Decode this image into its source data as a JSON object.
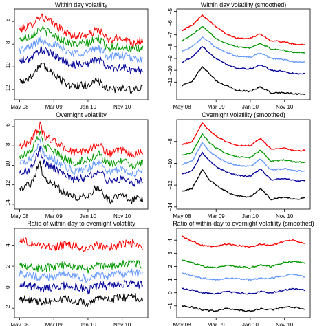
{
  "chart_data": [
    {
      "type": "line",
      "title": "Within day volatility",
      "x_ticks": [
        "May 08",
        "Mar 09",
        "Jan 10",
        "Nov 10"
      ],
      "y_ticks": [
        -6,
        -8,
        -10,
        -12
      ],
      "ylim": [
        -12.9,
        -4.9
      ],
      "grid": false,
      "x": [
        "May 08",
        "Aug 08",
        "Nov 08",
        "Mar 09",
        "Jun 09",
        "Sep 09",
        "Jan 10",
        "Apr 10",
        "Jul 10",
        "Nov 10",
        "Feb 11",
        "May 11"
      ],
      "series": [
        {
          "color": "#ff0000",
          "values": [
            -6.7,
            -6.4,
            -5.5,
            -6.2,
            -6.9,
            -7.3,
            -7.2,
            -6.7,
            -7.7,
            -7.4,
            -7.9,
            -7.6
          ]
        },
        {
          "color": "#009900",
          "values": [
            -7.6,
            -7.3,
            -6.6,
            -7.2,
            -7.7,
            -8.0,
            -7.9,
            -7.5,
            -8.3,
            -8.2,
            -8.5,
            -8.4
          ]
        },
        {
          "color": "#6699ff",
          "values": [
            -8.5,
            -8.3,
            -7.6,
            -8.0,
            -8.5,
            -8.8,
            -8.7,
            -8.3,
            -9.1,
            -9.0,
            -9.3,
            -9.3
          ]
        },
        {
          "color": "#000099",
          "values": [
            -9.5,
            -9.3,
            -8.5,
            -8.9,
            -9.5,
            -9.8,
            -9.7,
            -9.3,
            -10.1,
            -10.0,
            -10.4,
            -10.2
          ]
        },
        {
          "color": "#000000",
          "values": [
            -11.3,
            -11.0,
            -9.8,
            -10.5,
            -11.4,
            -11.7,
            -11.6,
            -11.2,
            -12.1,
            -11.8,
            -12.1,
            -11.9
          ]
        }
      ]
    },
    {
      "type": "line",
      "title": "Within day volatility (smoothed)",
      "x_ticks": [
        "May 08",
        "Mar 09",
        "Jan 10",
        "Nov 10"
      ],
      "y_ticks": [
        -5,
        -6,
        -7,
        -8,
        -9,
        -10,
        -11
      ],
      "ylim": [
        -12.5,
        -4.8
      ],
      "grid": false,
      "x": [
        "May 08",
        "Aug 08",
        "Nov 08",
        "Jan 09",
        "Mar 09",
        "Jun 09",
        "Sep 09",
        "Jan 10",
        "Apr 10",
        "Jul 10",
        "Nov 10",
        "Feb 11",
        "May 11"
      ],
      "series": [
        {
          "color": "#ff0000",
          "values": [
            -6.6,
            -6.2,
            -5.3,
            -5.8,
            -6.3,
            -6.9,
            -7.3,
            -7.3,
            -6.9,
            -7.5,
            -7.6,
            -7.8,
            -7.8
          ]
        },
        {
          "color": "#009900",
          "values": [
            -7.5,
            -7.0,
            -6.3,
            -6.8,
            -7.3,
            -7.7,
            -8.0,
            -8.1,
            -7.7,
            -8.2,
            -8.3,
            -8.5,
            -8.5
          ]
        },
        {
          "color": "#6699ff",
          "values": [
            -8.4,
            -8.0,
            -7.2,
            -7.6,
            -8.1,
            -8.5,
            -8.8,
            -8.9,
            -8.5,
            -9.0,
            -9.1,
            -9.3,
            -9.3
          ]
        },
        {
          "color": "#000099",
          "values": [
            -9.3,
            -8.9,
            -8.0,
            -8.5,
            -9.0,
            -9.5,
            -9.8,
            -9.9,
            -9.5,
            -10.0,
            -10.1,
            -10.3,
            -10.3
          ]
        },
        {
          "color": "#000000",
          "values": [
            -11.3,
            -10.9,
            -9.7,
            -10.3,
            -10.9,
            -11.3,
            -11.7,
            -11.8,
            -11.4,
            -11.9,
            -11.9,
            -12.0,
            -12.0
          ]
        }
      ]
    },
    {
      "type": "line",
      "title": "Overnight volatility",
      "x_ticks": [
        "May 08",
        "Mar 09",
        "Jan 10",
        "Nov 10"
      ],
      "y_ticks": [
        -6,
        -8,
        -10,
        -12,
        -14
      ],
      "ylim": [
        -14.5,
        -5.3
      ],
      "grid": false,
      "x": [
        "May 08",
        "Aug 08",
        "Nov 08",
        "Dec 08",
        "Mar 09",
        "Jun 09",
        "Sep 09",
        "Jan 10",
        "Apr 10",
        "Jul 10",
        "Nov 10",
        "Feb 11",
        "May 11"
      ],
      "series": [
        {
          "color": "#ff0000",
          "values": [
            -8.0,
            -7.6,
            -5.9,
            -6.9,
            -7.5,
            -8.2,
            -8.7,
            -8.4,
            -7.8,
            -8.8,
            -8.5,
            -8.9,
            -8.7
          ]
        },
        {
          "color": "#009900",
          "values": [
            -9.0,
            -8.7,
            -6.8,
            -8.0,
            -8.6,
            -9.3,
            -9.7,
            -9.4,
            -8.8,
            -9.9,
            -9.6,
            -10.0,
            -9.8
          ]
        },
        {
          "color": "#6699ff",
          "values": [
            -9.8,
            -9.5,
            -7.6,
            -8.8,
            -9.4,
            -10.1,
            -10.6,
            -10.3,
            -9.6,
            -10.7,
            -10.4,
            -10.8,
            -10.6
          ]
        },
        {
          "color": "#000099",
          "values": [
            -10.8,
            -10.5,
            -8.3,
            -9.7,
            -10.3,
            -11.0,
            -11.5,
            -11.2,
            -10.5,
            -11.7,
            -11.3,
            -11.8,
            -11.6
          ]
        },
        {
          "color": "#000000",
          "values": [
            -12.3,
            -12.0,
            -9.8,
            -11.3,
            -12.0,
            -12.8,
            -13.3,
            -13.0,
            -12.2,
            -13.6,
            -13.1,
            -13.6,
            -13.4
          ]
        }
      ]
    },
    {
      "type": "line",
      "title": "Overnight volatility (smoothed)",
      "x_ticks": [
        "May 08",
        "Mar 09",
        "Jan 10",
        "Nov 10"
      ],
      "y_ticks": [
        -8,
        -10,
        -12,
        -14
      ],
      "ylim": [
        -14.2,
        -6.0
      ],
      "grid": false,
      "x": [
        "May 08",
        "Aug 08",
        "Nov 08",
        "Jan 09",
        "Mar 09",
        "Jun 09",
        "Sep 09",
        "Jan 10",
        "Apr 10",
        "Jul 10",
        "Nov 10",
        "Feb 11",
        "May 11"
      ],
      "series": [
        {
          "color": "#ff0000",
          "values": [
            -8.3,
            -8.0,
            -6.3,
            -7.0,
            -7.5,
            -8.0,
            -8.4,
            -8.4,
            -7.7,
            -8.7,
            -8.6,
            -8.9,
            -8.8
          ]
        },
        {
          "color": "#009900",
          "values": [
            -9.3,
            -9.0,
            -7.3,
            -8.1,
            -8.6,
            -9.1,
            -9.4,
            -9.5,
            -8.8,
            -9.8,
            -9.7,
            -9.9,
            -9.9
          ]
        },
        {
          "color": "#6699ff",
          "values": [
            -10.1,
            -9.8,
            -8.1,
            -8.9,
            -9.4,
            -9.9,
            -10.2,
            -10.3,
            -9.6,
            -10.6,
            -10.5,
            -10.7,
            -10.7
          ]
        },
        {
          "color": "#000099",
          "values": [
            -11.0,
            -10.7,
            -9.0,
            -9.8,
            -10.3,
            -10.8,
            -11.1,
            -11.2,
            -10.5,
            -11.5,
            -11.4,
            -11.6,
            -11.6
          ]
        },
        {
          "color": "#000000",
          "values": [
            -12.6,
            -12.3,
            -10.6,
            -11.5,
            -12.0,
            -12.6,
            -13.0,
            -13.1,
            -12.3,
            -13.3,
            -13.1,
            -13.3,
            -13.2
          ]
        }
      ]
    },
    {
      "type": "line",
      "title": "Ratio of within day to overnight volatility",
      "x_ticks": [
        "May 08",
        "Mar 09",
        "Jan 10",
        "Nov 10"
      ],
      "y_ticks": [
        4,
        2,
        0,
        -2
      ],
      "ylim": [
        -2.9,
        5.6
      ],
      "grid": false,
      "x": [
        "May 08",
        "Aug 08",
        "Nov 08",
        "Mar 09",
        "Jun 09",
        "Sep 09",
        "Jan 10",
        "Apr 10",
        "Jul 10",
        "Nov 10",
        "Feb 11",
        "May 11"
      ],
      "series": [
        {
          "color": "#ff0000",
          "values": [
            4.6,
            4.2,
            4.0,
            3.8,
            4.0,
            3.9,
            3.6,
            4.0,
            3.8,
            4.1,
            4.2,
            3.6
          ]
        },
        {
          "color": "#009900",
          "values": [
            2.3,
            2.0,
            1.8,
            1.9,
            2.1,
            2.0,
            1.7,
            2.1,
            2.0,
            2.2,
            2.4,
            2.1
          ]
        },
        {
          "color": "#6699ff",
          "values": [
            1.3,
            1.1,
            0.9,
            1.0,
            1.2,
            1.1,
            0.8,
            1.2,
            1.1,
            1.3,
            1.4,
            1.2
          ]
        },
        {
          "color": "#000099",
          "values": [
            0.3,
            0.1,
            -0.1,
            0.0,
            0.2,
            0.1,
            -0.3,
            0.2,
            0.1,
            0.3,
            0.4,
            0.2
          ]
        },
        {
          "color": "#000000",
          "values": [
            -1.0,
            -1.2,
            -1.4,
            -1.3,
            -1.1,
            -1.2,
            -1.6,
            -1.1,
            -1.2,
            -1.0,
            -0.9,
            -1.1
          ]
        }
      ]
    },
    {
      "type": "line",
      "title": "Ratio of within day to overnight volatility (smoothed)",
      "x_ticks": [
        "May 08",
        "Mar 09",
        "Jan 10",
        "Nov 10"
      ],
      "y_ticks": [
        4,
        3,
        2,
        1,
        0,
        -1
      ],
      "ylim": [
        -1.9,
        4.9
      ],
      "grid": false,
      "x": [
        "May 08",
        "Aug 08",
        "Nov 08",
        "Mar 09",
        "Jun 09",
        "Sep 09",
        "Jan 10",
        "Apr 10",
        "Jul 10",
        "Nov 10",
        "Feb 11",
        "May 11"
      ],
      "series": [
        {
          "color": "#ff0000",
          "values": [
            4.3,
            3.9,
            3.6,
            3.5,
            3.7,
            3.6,
            3.5,
            3.7,
            3.6,
            3.9,
            4.0,
            3.7
          ]
        },
        {
          "color": "#009900",
          "values": [
            2.5,
            2.3,
            2.0,
            1.9,
            2.1,
            2.0,
            1.9,
            2.1,
            2.0,
            2.3,
            2.4,
            2.2
          ]
        },
        {
          "color": "#6699ff",
          "values": [
            1.5,
            1.3,
            1.1,
            1.0,
            1.1,
            1.1,
            1.0,
            1.1,
            1.1,
            1.3,
            1.4,
            1.2
          ]
        },
        {
          "color": "#000099",
          "values": [
            0.3,
            0.2,
            0.0,
            -0.1,
            0.1,
            0.0,
            -0.1,
            0.1,
            0.0,
            0.2,
            0.3,
            0.2
          ]
        },
        {
          "color": "#000000",
          "values": [
            -1.0,
            -1.1,
            -1.3,
            -1.4,
            -1.2,
            -1.3,
            -1.4,
            -1.2,
            -1.3,
            -1.1,
            -1.1,
            -1.3
          ]
        }
      ]
    }
  ]
}
